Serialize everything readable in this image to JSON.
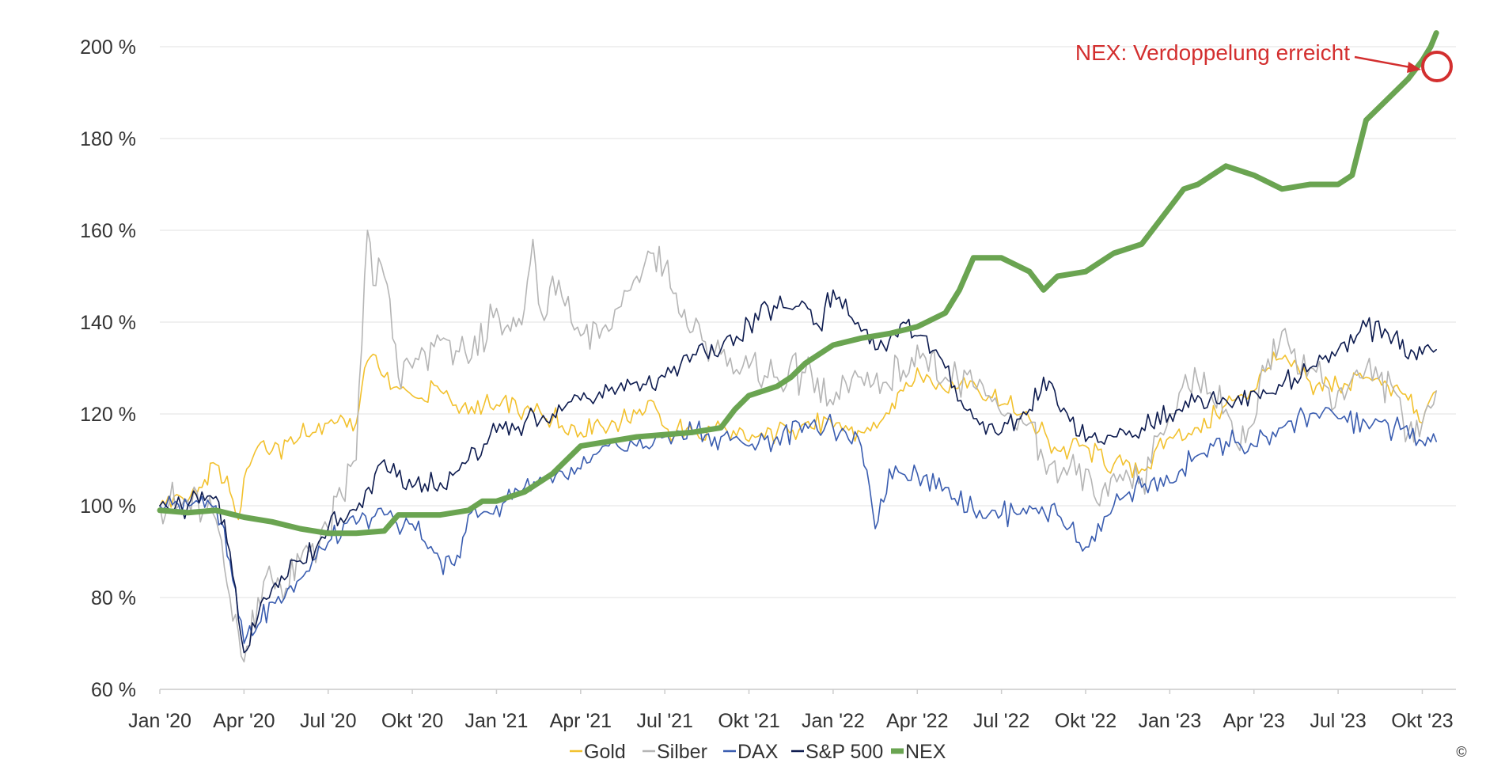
{
  "chart_data": {
    "type": "line",
    "title": "",
    "xlabel": "",
    "ylabel": "",
    "ylim": [
      60,
      205
    ],
    "y_ticks": [
      60,
      80,
      100,
      120,
      140,
      160,
      180,
      200
    ],
    "y_tick_labels": [
      "60 %",
      "80 %",
      "100 %",
      "120 %",
      "140 %",
      "160 %",
      "180 %",
      "200 %"
    ],
    "x_tick_labels": [
      "Jan '20",
      "Apr '20",
      "Jul '20",
      "Okt '20",
      "Jan '21",
      "Apr '21",
      "Jul '21",
      "Okt '21",
      "Jan '22",
      "Apr '22",
      "Jul '22",
      "Okt '22",
      "Jan '23",
      "Apr '23",
      "Jul '23",
      "Okt '23"
    ],
    "x_unit": "months since Jan 2020",
    "x_ticks": [
      0,
      3,
      6,
      9,
      12,
      15,
      18,
      21,
      24,
      27,
      30,
      33,
      36,
      39,
      42,
      45
    ],
    "grid": "horizontal",
    "legend_position": "bottom",
    "annotation": {
      "text": "NEX: Verdoppelung erreicht",
      "color": "#d32f2f",
      "x": 45.2,
      "y": 201
    },
    "copyright": "©",
    "series": [
      {
        "name": "Gold",
        "color": "#f2c12e",
        "width": 1.6,
        "points": [
          [
            0,
            100
          ],
          [
            0.5,
            102
          ],
          [
            1,
            101
          ],
          [
            1.5,
            104
          ],
          [
            2,
            109
          ],
          [
            2.5,
            103
          ],
          [
            2.8,
            97
          ],
          [
            3,
            106
          ],
          [
            3.5,
            113
          ],
          [
            4,
            112
          ],
          [
            5,
            115
          ],
          [
            6,
            118
          ],
          [
            7,
            118
          ],
          [
            7.3,
            130
          ],
          [
            7.6,
            133
          ],
          [
            8,
            128
          ],
          [
            9,
            124
          ],
          [
            10,
            125
          ],
          [
            11,
            120
          ],
          [
            12,
            122
          ],
          [
            13,
            121
          ],
          [
            14,
            119
          ],
          [
            15,
            116
          ],
          [
            15.5,
            118
          ],
          [
            16,
            117
          ],
          [
            17,
            120
          ],
          [
            17.5,
            123
          ],
          [
            18,
            117
          ],
          [
            19,
            116
          ],
          [
            20,
            117
          ],
          [
            21,
            114
          ],
          [
            22,
            116
          ],
          [
            23,
            118
          ],
          [
            24,
            117
          ],
          [
            25,
            116
          ],
          [
            26,
            120
          ],
          [
            26.5,
            125
          ],
          [
            27,
            130
          ],
          [
            28,
            125
          ],
          [
            29,
            127
          ],
          [
            30,
            122
          ],
          [
            31,
            119
          ],
          [
            32,
            112
          ],
          [
            33,
            113
          ],
          [
            34,
            109
          ],
          [
            35,
            108
          ],
          [
            36,
            115
          ],
          [
            37,
            117
          ],
          [
            38,
            122
          ],
          [
            39,
            125
          ],
          [
            39.5,
            130
          ],
          [
            40,
            132
          ],
          [
            41,
            127
          ],
          [
            42,
            126
          ],
          [
            43,
            128
          ],
          [
            44,
            126
          ],
          [
            44.5,
            123
          ],
          [
            45,
            118
          ],
          [
            45.5,
            125
          ]
        ]
      },
      {
        "name": "Silber",
        "color": "#b5b5b5",
        "width": 1.6,
        "points": [
          [
            0,
            100
          ],
          [
            1,
            101
          ],
          [
            2,
            97
          ],
          [
            2.5,
            80
          ],
          [
            3,
            66
          ],
          [
            3.5,
            80
          ],
          [
            4,
            84
          ],
          [
            4.5,
            82
          ],
          [
            5,
            88
          ],
          [
            6,
            95
          ],
          [
            6.5,
            102
          ],
          [
            7,
            110
          ],
          [
            7.2,
            135
          ],
          [
            7.4,
            160
          ],
          [
            7.6,
            148
          ],
          [
            8,
            150
          ],
          [
            8.5,
            128
          ],
          [
            9,
            130
          ],
          [
            10,
            136
          ],
          [
            11,
            131
          ],
          [
            12,
            143
          ],
          [
            12.5,
            138
          ],
          [
            13,
            143
          ],
          [
            13.3,
            158
          ],
          [
            13.6,
            142
          ],
          [
            14,
            150
          ],
          [
            15,
            137
          ],
          [
            16,
            138
          ],
          [
            17,
            150
          ],
          [
            17.5,
            155
          ],
          [
            18,
            152
          ],
          [
            18.5,
            142
          ],
          [
            19,
            138
          ],
          [
            20,
            133
          ],
          [
            21,
            130
          ],
          [
            22,
            128
          ],
          [
            23,
            129
          ],
          [
            24,
            122
          ],
          [
            25,
            128
          ],
          [
            26,
            126
          ],
          [
            26.3,
            132
          ],
          [
            26.6,
            128
          ],
          [
            27,
            135
          ],
          [
            27.5,
            133
          ],
          [
            28,
            128
          ],
          [
            29,
            126
          ],
          [
            30,
            120
          ],
          [
            31,
            118
          ],
          [
            31.5,
            110
          ],
          [
            32,
            105
          ],
          [
            33,
            108
          ],
          [
            33.5,
            100
          ],
          [
            34,
            107
          ],
          [
            35,
            106
          ],
          [
            36,
            120
          ],
          [
            37,
            127
          ],
          [
            38,
            121
          ],
          [
            38.5,
            112
          ],
          [
            39,
            118
          ],
          [
            39.5,
            132
          ],
          [
            40,
            138
          ],
          [
            41,
            130
          ],
          [
            42,
            125
          ],
          [
            43,
            130
          ],
          [
            44,
            125
          ],
          [
            44.5,
            116
          ],
          [
            45,
            118
          ],
          [
            45.5,
            125
          ]
        ]
      },
      {
        "name": "DAX",
        "color": "#3a5db0",
        "width": 1.6,
        "points": [
          [
            0,
            100
          ],
          [
            1,
            100
          ],
          [
            1.5,
            102
          ],
          [
            2,
            100
          ],
          [
            2.5,
            88
          ],
          [
            3,
            70
          ],
          [
            3.5,
            74
          ],
          [
            4,
            79
          ],
          [
            5,
            84
          ],
          [
            6,
            92
          ],
          [
            7,
            96
          ],
          [
            8,
            98
          ],
          [
            9,
            96
          ],
          [
            10,
            88
          ],
          [
            10.5,
            87
          ],
          [
            11,
            98
          ],
          [
            12,
            100
          ],
          [
            13,
            104
          ],
          [
            14,
            105
          ],
          [
            15,
            108
          ],
          [
            16,
            113
          ],
          [
            17,
            113
          ],
          [
            18,
            115
          ],
          [
            19,
            116
          ],
          [
            20,
            115
          ],
          [
            21,
            113
          ],
          [
            22,
            115
          ],
          [
            23,
            118
          ],
          [
            24,
            117
          ],
          [
            25,
            113
          ],
          [
            25.5,
            95
          ],
          [
            26,
            108
          ],
          [
            27,
            107
          ],
          [
            28,
            104
          ],
          [
            29,
            99
          ],
          [
            30,
            98
          ],
          [
            31,
            100
          ],
          [
            32,
            98
          ],
          [
            33,
            91
          ],
          [
            34,
            100
          ],
          [
            35,
            104
          ],
          [
            36,
            105
          ],
          [
            37,
            111
          ],
          [
            38,
            114
          ],
          [
            39,
            113
          ],
          [
            40,
            117
          ],
          [
            41,
            120
          ],
          [
            42,
            119
          ],
          [
            43,
            118
          ],
          [
            44,
            117
          ],
          [
            45,
            114
          ],
          [
            45.5,
            114
          ]
        ]
      },
      {
        "name": "S&P 500",
        "color": "#0d1b4f",
        "width": 1.6,
        "points": [
          [
            0,
            100
          ],
          [
            1,
            100
          ],
          [
            1.5,
            103
          ],
          [
            2,
            102
          ],
          [
            2.5,
            90
          ],
          [
            3,
            68
          ],
          [
            3.5,
            76
          ],
          [
            4,
            82
          ],
          [
            5,
            88
          ],
          [
            6,
            95
          ],
          [
            7,
            99
          ],
          [
            8,
            110
          ],
          [
            9,
            104
          ],
          [
            10,
            105
          ],
          [
            11,
            110
          ],
          [
            12,
            116
          ],
          [
            13,
            118
          ],
          [
            14,
            120
          ],
          [
            15,
            123
          ],
          [
            16,
            125
          ],
          [
            17,
            127
          ],
          [
            18,
            128
          ],
          [
            19,
            133
          ],
          [
            20,
            134
          ],
          [
            21,
            140
          ],
          [
            22,
            143
          ],
          [
            23,
            144
          ],
          [
            23.5,
            139
          ],
          [
            24,
            147
          ],
          [
            25,
            138
          ],
          [
            25.5,
            134
          ],
          [
            26,
            136
          ],
          [
            26.5,
            140
          ],
          [
            27,
            137
          ],
          [
            28,
            130
          ],
          [
            29,
            119
          ],
          [
            30,
            116
          ],
          [
            31,
            121
          ],
          [
            31.5,
            128
          ],
          [
            32,
            122
          ],
          [
            33,
            114
          ],
          [
            34,
            115
          ],
          [
            35,
            117
          ],
          [
            36,
            120
          ],
          [
            37,
            124
          ],
          [
            38,
            123
          ],
          [
            39,
            125
          ],
          [
            40,
            126
          ],
          [
            41,
            130
          ],
          [
            42,
            134
          ],
          [
            43,
            139
          ],
          [
            44,
            137
          ],
          [
            44.5,
            132
          ],
          [
            45,
            133
          ],
          [
            45.5,
            134
          ]
        ]
      },
      {
        "name": "NEX",
        "color": "#6aa451",
        "width": 7,
        "points": [
          [
            0,
            99
          ],
          [
            1,
            98.5
          ],
          [
            2,
            99
          ],
          [
            3,
            97.5
          ],
          [
            4,
            96.5
          ],
          [
            5,
            95
          ],
          [
            6,
            94
          ],
          [
            7,
            94
          ],
          [
            8,
            94.5
          ],
          [
            8.5,
            98
          ],
          [
            9,
            98
          ],
          [
            10,
            98
          ],
          [
            11,
            99
          ],
          [
            11.5,
            101
          ],
          [
            12,
            101
          ],
          [
            13,
            103
          ],
          [
            14,
            107
          ],
          [
            14.5,
            110
          ],
          [
            15,
            113
          ],
          [
            16,
            114
          ],
          [
            17,
            115
          ],
          [
            18,
            115.5
          ],
          [
            19,
            116
          ],
          [
            20,
            117
          ],
          [
            20.5,
            121
          ],
          [
            21,
            124
          ],
          [
            22,
            126
          ],
          [
            22.5,
            128
          ],
          [
            23,
            131
          ],
          [
            23.5,
            133
          ],
          [
            24,
            135
          ],
          [
            25,
            136.5
          ],
          [
            26,
            137.5
          ],
          [
            27,
            139
          ],
          [
            28,
            142
          ],
          [
            28.5,
            147
          ],
          [
            29,
            154
          ],
          [
            30,
            154
          ],
          [
            31,
            151
          ],
          [
            31.5,
            147
          ],
          [
            32,
            150
          ],
          [
            33,
            151
          ],
          [
            34,
            155
          ],
          [
            35,
            157
          ],
          [
            36,
            165
          ],
          [
            36.5,
            169
          ],
          [
            37,
            170
          ],
          [
            38,
            174
          ],
          [
            39,
            172
          ],
          [
            40,
            169
          ],
          [
            41,
            170
          ],
          [
            41.5,
            170
          ],
          [
            42,
            170
          ],
          [
            42.5,
            172
          ],
          [
            43,
            184
          ],
          [
            44,
            190
          ],
          [
            44.5,
            193
          ],
          [
            45,
            197
          ],
          [
            45.3,
            200
          ],
          [
            45.5,
            203
          ]
        ]
      }
    ]
  }
}
